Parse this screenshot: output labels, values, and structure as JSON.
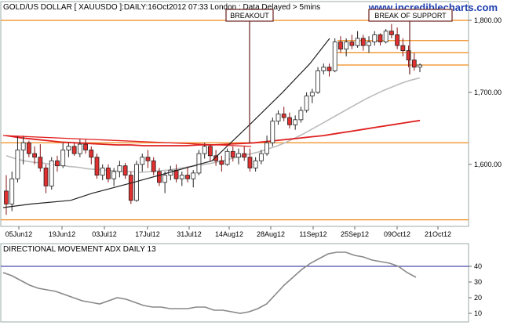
{
  "header": {
    "title": "GOLD/US DOLLAR [ XAUUSDO ]:DAILY:16Oct2012 07:33 London : Data Delayed > 5mins",
    "watermark": "www.incrediblecharts.com"
  },
  "colors": {
    "up_candle": "#ffffff",
    "down_candle": "#e03030",
    "support_resistance": "#f08a1a",
    "ma_short": "#bbbbbb",
    "ma_long": "#e02020",
    "trendline": "#222222",
    "adx_line": "#888888",
    "adx_level": "#4a4ab0",
    "annotation_border": "#6a2020"
  },
  "chart_data": [
    {
      "type": "candlestick",
      "title": "GOLD/US DOLLAR [ XAUUSDO ]:DAILY:16Oct2012 07:33 London : Data Delayed > 5mins",
      "x_ticks": [
        "05Jun12",
        "19Jun12",
        "03Jul12",
        "17Jul12",
        "31Jul12",
        "14Aug12",
        "28Aug12",
        "11Sep12",
        "25Sep12",
        "09Oct12",
        "21Oct12"
      ],
      "y_ticks": [
        1600,
        1700,
        1800
      ],
      "y_tick_labels": [
        "1,600.00",
        "1,700.00",
        "1,800.00"
      ],
      "ylim": [
        1515,
        1825
      ],
      "horizontal_levels": [
        1800,
        1772,
        1755,
        1738,
        1630,
        1523
      ],
      "ohlc": [
        [
          1563,
          1585,
          1530,
          1545
        ],
        [
          1545,
          1590,
          1535,
          1580
        ],
        [
          1580,
          1640,
          1575,
          1620
        ],
        [
          1620,
          1640,
          1600,
          1630
        ],
        [
          1630,
          1633,
          1610,
          1615
        ],
        [
          1615,
          1625,
          1600,
          1610
        ],
        [
          1610,
          1628,
          1590,
          1595
        ],
        [
          1595,
          1600,
          1560,
          1570
        ],
        [
          1570,
          1610,
          1565,
          1605
        ],
        [
          1605,
          1612,
          1590,
          1598
        ],
        [
          1598,
          1630,
          1595,
          1620
        ],
        [
          1620,
          1630,
          1610,
          1625
        ],
        [
          1625,
          1630,
          1612,
          1615
        ],
        [
          1615,
          1635,
          1610,
          1628
        ],
        [
          1628,
          1635,
          1615,
          1620
        ],
        [
          1620,
          1625,
          1600,
          1610
        ],
        [
          1610,
          1615,
          1580,
          1585
        ],
        [
          1585,
          1600,
          1578,
          1595
        ],
        [
          1595,
          1600,
          1575,
          1580
        ],
        [
          1580,
          1595,
          1570,
          1590
        ],
        [
          1590,
          1605,
          1582,
          1598
        ],
        [
          1598,
          1602,
          1580,
          1585
        ],
        [
          1585,
          1590,
          1545,
          1550
        ],
        [
          1550,
          1605,
          1548,
          1600
        ],
        [
          1600,
          1615,
          1590,
          1610
        ],
        [
          1610,
          1620,
          1595,
          1605
        ],
        [
          1605,
          1610,
          1585,
          1590
        ],
        [
          1590,
          1595,
          1570,
          1575
        ],
        [
          1575,
          1590,
          1560,
          1585
        ],
        [
          1585,
          1598,
          1578,
          1592
        ],
        [
          1592,
          1600,
          1575,
          1580
        ],
        [
          1580,
          1590,
          1570,
          1585
        ],
        [
          1585,
          1597,
          1575,
          1580
        ],
        [
          1580,
          1592,
          1568,
          1588
        ],
        [
          1588,
          1620,
          1585,
          1615
        ],
        [
          1615,
          1630,
          1608,
          1625
        ],
        [
          1625,
          1628,
          1605,
          1612
        ],
        [
          1612,
          1620,
          1598,
          1605
        ],
        [
          1605,
          1612,
          1590,
          1600
        ],
        [
          1600,
          1622,
          1598,
          1618
        ],
        [
          1618,
          1625,
          1604,
          1610
        ],
        [
          1610,
          1622,
          1600,
          1615
        ],
        [
          1615,
          1625,
          1605,
          1610
        ],
        [
          1610,
          1622,
          1590,
          1595
        ],
        [
          1595,
          1610,
          1590,
          1605
        ],
        [
          1605,
          1620,
          1600,
          1615
        ],
        [
          1615,
          1640,
          1612,
          1630
        ],
        [
          1630,
          1665,
          1625,
          1660
        ],
        [
          1660,
          1675,
          1655,
          1670
        ],
        [
          1670,
          1680,
          1660,
          1665
        ],
        [
          1665,
          1672,
          1650,
          1655
        ],
        [
          1655,
          1668,
          1648,
          1662
        ],
        [
          1662,
          1680,
          1658,
          1675
        ],
        [
          1675,
          1700,
          1672,
          1695
        ],
        [
          1695,
          1705,
          1685,
          1700
        ],
        [
          1700,
          1735,
          1698,
          1730
        ],
        [
          1730,
          1740,
          1725,
          1735
        ],
        [
          1735,
          1740,
          1722,
          1730
        ],
        [
          1730,
          1775,
          1728,
          1770
        ],
        [
          1770,
          1778,
          1755,
          1760
        ],
        [
          1760,
          1775,
          1750,
          1770
        ],
        [
          1770,
          1780,
          1760,
          1765
        ],
        [
          1765,
          1785,
          1762,
          1775
        ],
        [
          1775,
          1780,
          1758,
          1765
        ],
        [
          1765,
          1778,
          1755,
          1770
        ],
        [
          1770,
          1785,
          1765,
          1780
        ],
        [
          1780,
          1782,
          1765,
          1770
        ],
        [
          1770,
          1788,
          1768,
          1785
        ],
        [
          1785,
          1795,
          1775,
          1780
        ],
        [
          1780,
          1790,
          1760,
          1765
        ],
        [
          1765,
          1775,
          1750,
          1758
        ],
        [
          1758,
          1765,
          1735,
          1745
        ],
        [
          1745,
          1755,
          1730,
          1735
        ],
        [
          1735,
          1740,
          1728,
          1738
        ]
      ],
      "series": [
        {
          "name": "",
          "type": "ma_short",
          "values": [
            1612,
            1608,
            1605,
            1603,
            1602,
            1600,
            1599,
            1597,
            1596,
            1594,
            1593,
            1592,
            1591,
            1590,
            1590,
            1589,
            1590,
            1591,
            1592,
            1594,
            1596,
            1598,
            1600,
            1602,
            1605,
            1608,
            1611,
            1614,
            1617,
            1621,
            1625,
            1630,
            1636,
            1642,
            1649,
            1656,
            1663,
            1670,
            1677,
            1684,
            1691,
            1697,
            1703,
            1708,
            1713,
            1717,
            1720
          ]
        },
        {
          "name": "",
          "type": "ma_long",
          "values": [
            1640,
            1637,
            1635,
            1633,
            1631,
            1630,
            1629,
            1628,
            1627,
            1627,
            1626,
            1626,
            1626,
            1626,
            1627,
            1627,
            1628,
            1629,
            1630,
            1632,
            1634,
            1636,
            1638,
            1640,
            1643,
            1646,
            1649,
            1652,
            1655,
            1658,
            1661
          ]
        },
        {
          "name": "",
          "type": "trendline",
          "values": [
            1540,
            1545,
            1550,
            1560,
            1575,
            1590,
            1605,
            1655,
            1700,
            1740,
            1775
          ]
        }
      ]
    },
    {
      "type": "line",
      "title": "DIRECTIONAL MOVEMENT ADX DAILY 13",
      "y_ticks": [
        10,
        20,
        30,
        40
      ],
      "ylim": [
        5,
        50
      ],
      "level": 40,
      "series": [
        {
          "name": "",
          "values": [
            36,
            34,
            31,
            28,
            26,
            25,
            24,
            22,
            20,
            18,
            17,
            16,
            18,
            20,
            19,
            17,
            15,
            14,
            14,
            13,
            13,
            13,
            14,
            14,
            12,
            12,
            11,
            10,
            11,
            13,
            16,
            22,
            28,
            33,
            38,
            42,
            45,
            48,
            49,
            49,
            47,
            46,
            44,
            43,
            42,
            40,
            36,
            33
          ]
        }
      ]
    }
  ],
  "annotations": [
    {
      "label": "BREAKOUT"
    },
    {
      "label": "BREAK OF SUPPORT"
    }
  ]
}
